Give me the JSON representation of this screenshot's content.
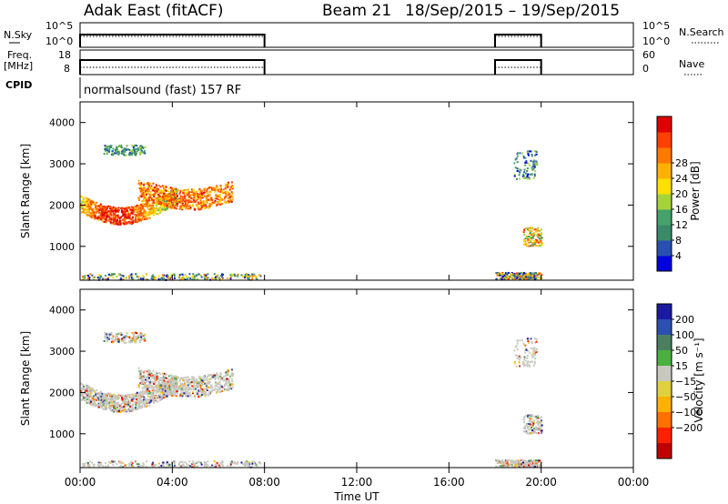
{
  "header": {
    "radar": "Adak East (fitACF)",
    "beam": "Beam 21",
    "dates": "18/Sep/2015 – 19/Sep/2015"
  },
  "side_labels": {
    "nsky": "N.Sky",
    "freq": "Freq.",
    "mhz": "[MHz]",
    "cpid": "CPID",
    "nsearch": "N.Search",
    "nave": "Nave"
  },
  "cpid_text": "normalsound (fast) 157 RF",
  "colors": {
    "power_scale": [
      "#0000e0",
      "#2850b0",
      "#3a8a6a",
      "#43a36a",
      "#a6d23a",
      "#ffe000",
      "#ffb000",
      "#ff7800",
      "#ff4000",
      "#e00000"
    ],
    "velocity_scale": [
      "#1a1aa0",
      "#2a50b0",
      "#4a8060",
      "#4ab040",
      "#c8c8c0",
      "#e0d040",
      "#ffb000",
      "#ff7000",
      "#ff2000",
      "#c00000"
    ]
  },
  "chart_data": [
    {
      "type": "line",
      "name": "noise-panel",
      "ylabel_left": "N.Sky",
      "ylabel_right": "N.Search",
      "yticks_left": [
        "10^5",
        "10^0"
      ],
      "yticks_right": [
        "10^5",
        "10^0"
      ],
      "segments": [
        [
          0,
          8
        ],
        [
          18,
          20
        ]
      ]
    },
    {
      "type": "line",
      "name": "freq-panel",
      "ylabel_left": "Freq. [MHz]",
      "ylabel_right": "Nave",
      "yticks_left": [
        "18",
        "8"
      ],
      "yticks_right": [
        "60",
        "0"
      ],
      "segments": [
        [
          0,
          8
        ],
        [
          18,
          20
        ]
      ]
    },
    {
      "type": "heatmap",
      "name": "power-panel",
      "ylabel": "Slant Range [km]",
      "yticks": [
        "1000",
        "2000",
        "3000",
        "4000"
      ],
      "ylim": [
        180,
        4500
      ],
      "colorbar_label": "Power [dB]",
      "colorbar_ticks": [
        "4",
        "8",
        "12",
        "16",
        "20",
        "24",
        "28"
      ]
    },
    {
      "type": "heatmap",
      "name": "velocity-panel",
      "ylabel": "Slant Range [km]",
      "yticks": [
        "1000",
        "2000",
        "3000",
        "4000"
      ],
      "ylim": [
        180,
        4500
      ],
      "colorbar_label": "Velocity [m s⁻¹]",
      "colorbar_ticks": [
        "200",
        "100",
        "50",
        "15",
        "−15",
        "−50",
        "−100",
        "−200"
      ]
    }
  ],
  "x_axis": {
    "ticks": [
      "00:00",
      "04:00",
      "08:00",
      "12:00",
      "16:00",
      "20:00",
      "00:00"
    ],
    "label": "Time UT",
    "xlim_hours": [
      0,
      24
    ]
  }
}
